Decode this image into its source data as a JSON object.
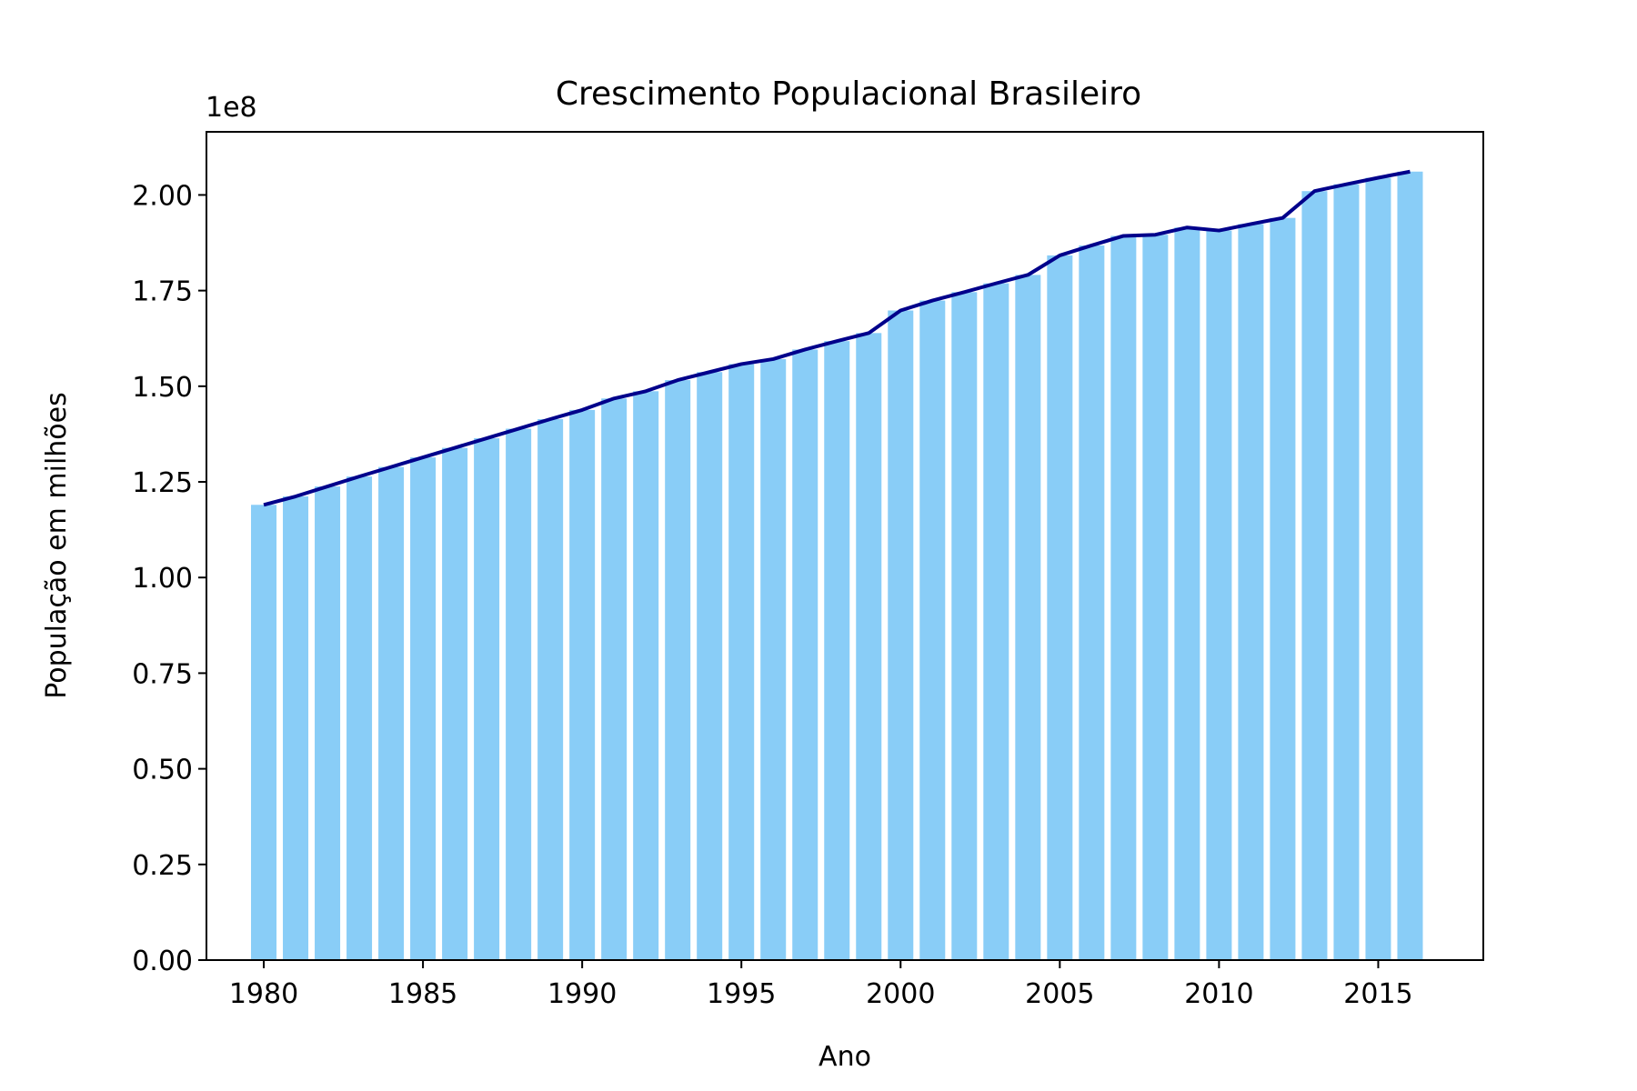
{
  "chart_data": {
    "type": "bar",
    "title": "Crescimento Populacional Brasileiro",
    "xlabel": "Ano",
    "ylabel": "População em milhões",
    "y_offset_label": "1e8",
    "y_scale_factor": 100000000,
    "xlim": [
      1978.2,
      2018.3
    ],
    "ylim": [
      0,
      216500000
    ],
    "x_ticks": [
      1980,
      1985,
      1990,
      1995,
      2000,
      2005,
      2010,
      2015
    ],
    "y_ticks": [
      0,
      25000000,
      50000000,
      75000000,
      100000000,
      125000000,
      150000000,
      175000000,
      200000000
    ],
    "y_tick_labels": [
      "0.00",
      "0.25",
      "0.50",
      "0.75",
      "1.00",
      "1.25",
      "1.50",
      "1.75",
      "2.00"
    ],
    "bar_color": "#89cdf7",
    "line_color": "#00008b",
    "grid": false,
    "x": [
      1980,
      1981,
      1982,
      1983,
      1984,
      1985,
      1986,
      1987,
      1988,
      1989,
      1990,
      1991,
      1992,
      1993,
      1994,
      1995,
      1996,
      1997,
      1998,
      1999,
      2000,
      2001,
      2002,
      2003,
      2004,
      2005,
      2006,
      2007,
      2008,
      2009,
      2010,
      2011,
      2012,
      2013,
      2014,
      2015,
      2016
    ],
    "series": [
      {
        "values": [
          119000000,
          121200000,
          123800000,
          126400000,
          128900000,
          131400000,
          133900000,
          136400000,
          138900000,
          141400000,
          143800000,
          146800000,
          148700000,
          151600000,
          153700000,
          155800000,
          157100000,
          159600000,
          161800000,
          163900000,
          169800000,
          172400000,
          174600000,
          176900000,
          179100000,
          184200000,
          186800000,
          189300000,
          189600000,
          191500000,
          190700000,
          192400000,
          194000000,
          201000000,
          202800000,
          204500000,
          206100000
        ]
      }
    ]
  }
}
